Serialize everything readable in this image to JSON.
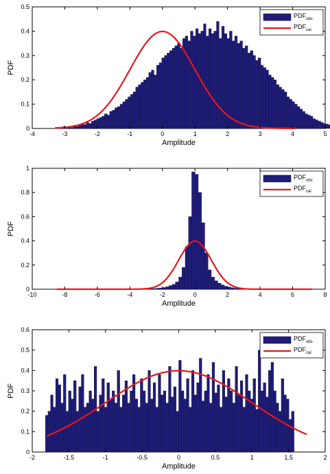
{
  "figure": {
    "colors": {
      "bar_fill": "#1f1d78",
      "bar_edge": "#0b0a3a",
      "curve": "#e8161b",
      "axes": "#000000"
    }
  },
  "chart_data": [
    {
      "type": "bar",
      "xlabel": "Amplitude",
      "ylabel": "PDF",
      "xlim": [
        -4,
        5
      ],
      "ylim": [
        0,
        0.5
      ],
      "xticks": [
        "-4",
        "-3",
        "-2",
        "-1",
        "0",
        "1",
        "2",
        "3",
        "4",
        "5"
      ],
      "yticks": [
        "0",
        "0.1",
        "0.2",
        "0.3",
        "0.4",
        "0.5"
      ],
      "legend": {
        "position": "top-right",
        "entries": [
          {
            "main": "PDF",
            "sub": "obs",
            "kind": "bar"
          },
          {
            "main": "PDF",
            "sub": "cal",
            "kind": "line"
          }
        ]
      },
      "series": [
        {
          "name": "PDFobs",
          "type": "bar",
          "bin_start": -3.3,
          "bin_width": 0.08,
          "values": [
            0.004,
            0,
            0.004,
            0.008,
            0.004,
            0.008,
            0.004,
            0.012,
            0.008,
            0.012,
            0.02,
            0.016,
            0.024,
            0.02,
            0.03,
            0.035,
            0.04,
            0.045,
            0.05,
            0.06,
            0.055,
            0.07,
            0.075,
            0.085,
            0.09,
            0.1,
            0.11,
            0.12,
            0.13,
            0.14,
            0.15,
            0.17,
            0.18,
            0.19,
            0.2,
            0.21,
            0.23,
            0.24,
            0.22,
            0.26,
            0.27,
            0.29,
            0.3,
            0.31,
            0.32,
            0.33,
            0.34,
            0.35,
            0.33,
            0.37,
            0.38,
            0.36,
            0.4,
            0.38,
            0.41,
            0.39,
            0.4,
            0.43,
            0.38,
            0.41,
            0.39,
            0.4,
            0.44,
            0.37,
            0.42,
            0.39,
            0.37,
            0.4,
            0.36,
            0.38,
            0.35,
            0.36,
            0.33,
            0.34,
            0.31,
            0.32,
            0.3,
            0.28,
            0.29,
            0.26,
            0.25,
            0.24,
            0.22,
            0.21,
            0.2,
            0.18,
            0.17,
            0.16,
            0.15,
            0.13,
            0.12,
            0.11,
            0.1,
            0.09,
            0.08,
            0.07,
            0.06,
            0.055,
            0.05,
            0.04,
            0.035,
            0.03,
            0.025,
            0.02,
            0.018,
            0.015,
            0.012,
            0.01,
            0.008,
            0.006,
            0.005,
            0.004,
            0.003,
            0.002,
            0.002,
            0.001,
            0.002,
            0.001,
            0.001,
            0.003,
            0.002,
            0.004,
            0.001,
            0,
            0.002,
            0.002,
            0.001,
            0,
            0,
            0.006
          ]
        },
        {
          "name": "PDFcal",
          "type": "line",
          "curve": "normal",
          "mean": 0,
          "std": 1,
          "x_range": [
            -3.3,
            4.1
          ]
        }
      ]
    },
    {
      "type": "bar",
      "xlabel": "Amplitude",
      "ylabel": "PDF",
      "xlim": [
        -10,
        8
      ],
      "ylim": [
        0,
        1
      ],
      "xticks": [
        "-10",
        "-8",
        "-6",
        "-4",
        "-2",
        "0",
        "2",
        "4",
        "6",
        "8"
      ],
      "yticks": [
        "0",
        "0.2",
        "0.4",
        "0.6",
        "0.8",
        "1"
      ],
      "legend": {
        "position": "top-right",
        "entries": [
          {
            "main": "PDF",
            "sub": "obs",
            "kind": "bar"
          },
          {
            "main": "PDF",
            "sub": "cal",
            "kind": "line"
          }
        ]
      },
      "series": [
        {
          "name": "PDFobs",
          "type": "bar",
          "bin_start": -3.0,
          "bin_width": 0.2,
          "values": [
            0.003,
            0.004,
            0.005,
            0.008,
            0.01,
            0.014,
            0.02,
            0.03,
            0.04,
            0.06,
            0.1,
            0.18,
            0.35,
            0.6,
            0.97,
            0.95,
            0.8,
            0.55,
            0.3,
            0.16,
            0.1,
            0.07,
            0.05,
            0.035,
            0.025,
            0.018,
            0.012,
            0.008,
            0.006,
            0.004
          ]
        },
        {
          "name": "PDFcal",
          "type": "line",
          "curve": "normal",
          "mean": 0,
          "std": 1,
          "x_range": [
            -8.5,
            7.2
          ]
        }
      ]
    },
    {
      "type": "bar",
      "xlabel": "Amplitude",
      "ylabel": "PDF",
      "xlim": [
        -2,
        2
      ],
      "ylim": [
        0,
        0.6
      ],
      "xticks": [
        "-2",
        "-1.5",
        "-1",
        "-0.5",
        "0",
        "0.5",
        "1",
        "1.5",
        "2"
      ],
      "yticks": [
        "0",
        "0.1",
        "0.2",
        "0.3",
        "0.4",
        "0.5",
        "0.6"
      ],
      "legend": {
        "position": "top-right",
        "entries": [
          {
            "main": "PDF",
            "sub": "obs",
            "kind": "bar"
          },
          {
            "main": "PDF",
            "sub": "cal",
            "kind": "line"
          }
        ]
      },
      "series": [
        {
          "name": "PDFobs",
          "type": "bar",
          "bin_start": -1.82,
          "bin_width": 0.035,
          "values": [
            0.18,
            0.2,
            0.28,
            0.22,
            0.36,
            0.33,
            0.24,
            0.38,
            0.2,
            0.3,
            0.26,
            0.35,
            0.2,
            0.32,
            0.38,
            0.22,
            0.24,
            0.3,
            0.26,
            0.42,
            0.2,
            0.28,
            0.36,
            0.22,
            0.34,
            0.26,
            0.3,
            0.24,
            0.4,
            0.22,
            0.28,
            0.35,
            0.24,
            0.3,
            0.38,
            0.26,
            0.22,
            0.36,
            0.3,
            0.24,
            0.4,
            0.26,
            0.34,
            0.22,
            0.38,
            0.28,
            0.3,
            0.24,
            0.42,
            0.27,
            0.32,
            0.2,
            0.45,
            0.3,
            0.26,
            0.36,
            0.22,
            0.4,
            0.28,
            0.34,
            0.46,
            0.25,
            0.3,
            0.38,
            0.24,
            0.44,
            0.29,
            0.33,
            0.22,
            0.4,
            0.27,
            0.36,
            0.3,
            0.24,
            0.42,
            0.28,
            0.35,
            0.22,
            0.38,
            0.3,
            0.26,
            0.36,
            0.21,
            0.5,
            0.3,
            0.34,
            0.27,
            0.4,
            0.44,
            0.3,
            0.24,
            0.2,
            0.36,
            0.28,
            0.26,
            0.16,
            0.2
          ]
        },
        {
          "name": "PDFcal",
          "type": "line",
          "curve": "normal",
          "mean": 0,
          "std": 1,
          "x_range": [
            -1.8,
            1.75
          ]
        }
      ]
    }
  ]
}
